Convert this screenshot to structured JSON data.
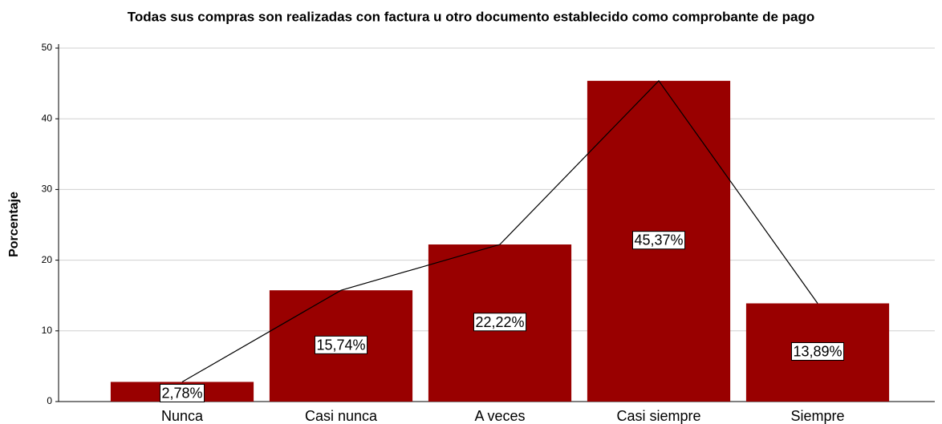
{
  "chart_data": {
    "type": "bar",
    "title": "Todas sus compras son realizadas con factura u otro documento establecido como comprobante de pago",
    "y_label": "Porcentaje",
    "categories": [
      "Nunca",
      "Casi nunca",
      "A veces",
      "Casi siempre",
      "Siempre"
    ],
    "values": [
      2.78,
      15.74,
      22.22,
      45.37,
      13.89
    ],
    "value_labels": [
      "2,78%",
      "15,74%",
      "22,22%",
      "45,37%",
      "13,89%"
    ],
    "color": "#990000",
    "line_color": "#000000",
    "ylim": [
      0,
      50
    ],
    "yticks": [
      0,
      10,
      20,
      30,
      40,
      50
    ],
    "grid": true
  }
}
